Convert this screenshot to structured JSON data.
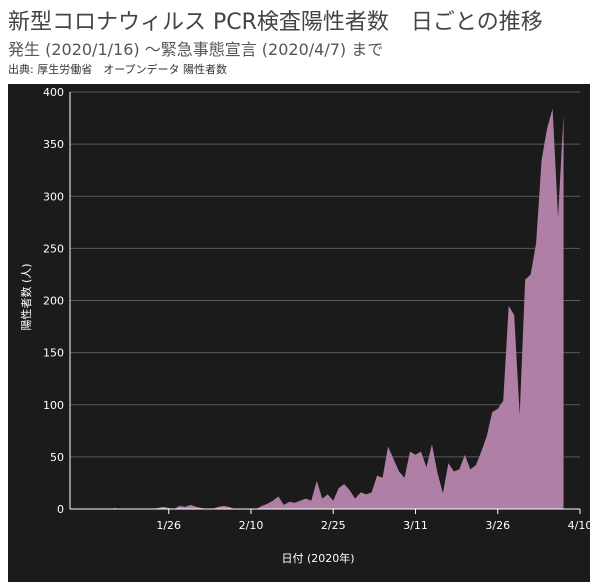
{
  "header": {
    "title": "新型コロナウィルス PCR検査陽性者数　日ごとの推移",
    "subtitle": "発生 (2020/1/16) 〜緊急事態宣言 (2020/4/7) まで",
    "source": "出典: 厚生労働省　オープンデータ 陽性者数"
  },
  "colors": {
    "panel_background": "#1b1b1b",
    "area_fill": "#b07fa6",
    "axis": "#ffffff",
    "grid": "#5a5a5a",
    "text": "#ffffff"
  },
  "chart_data": {
    "type": "area",
    "title": "",
    "xlabel": "日付 (2020年)",
    "ylabel": "陽性者数 (人)",
    "xlim": [
      "2020-01-08",
      "2020-04-10"
    ],
    "ylim": [
      0,
      400
    ],
    "x_ticks": [
      "1/26",
      "2/10",
      "2/25",
      "3/11",
      "3/26",
      "4/10"
    ],
    "x_tick_dates": [
      "2020-01-26",
      "2020-02-10",
      "2020-02-25",
      "2020-03-11",
      "2020-03-26",
      "2020-04-10"
    ],
    "y_ticks": [
      0,
      50,
      100,
      150,
      200,
      250,
      300,
      350,
      400
    ],
    "grid": true,
    "series": [
      {
        "x": [
          "2020-01-16",
          "2020-01-17",
          "2020-01-18",
          "2020-01-19",
          "2020-01-20",
          "2020-01-21",
          "2020-01-22",
          "2020-01-23",
          "2020-01-24",
          "2020-01-25",
          "2020-01-26",
          "2020-01-27",
          "2020-01-28",
          "2020-01-29",
          "2020-01-30",
          "2020-01-31",
          "2020-02-01",
          "2020-02-02",
          "2020-02-03",
          "2020-02-04",
          "2020-02-05",
          "2020-02-06",
          "2020-02-07",
          "2020-02-08",
          "2020-02-09",
          "2020-02-10",
          "2020-02-11",
          "2020-02-12",
          "2020-02-13",
          "2020-02-14",
          "2020-02-15",
          "2020-02-16",
          "2020-02-17",
          "2020-02-18",
          "2020-02-19",
          "2020-02-20",
          "2020-02-21",
          "2020-02-22",
          "2020-02-23",
          "2020-02-24",
          "2020-02-25",
          "2020-02-26",
          "2020-02-27",
          "2020-02-28",
          "2020-02-29",
          "2020-03-01",
          "2020-03-02",
          "2020-03-03",
          "2020-03-04",
          "2020-03-05",
          "2020-03-06",
          "2020-03-07",
          "2020-03-08",
          "2020-03-09",
          "2020-03-10",
          "2020-03-11",
          "2020-03-12",
          "2020-03-13",
          "2020-03-14",
          "2020-03-15",
          "2020-03-16",
          "2020-03-17",
          "2020-03-18",
          "2020-03-19",
          "2020-03-20",
          "2020-03-21",
          "2020-03-22",
          "2020-03-23",
          "2020-03-24",
          "2020-03-25",
          "2020-03-26",
          "2020-03-27",
          "2020-03-28",
          "2020-03-29",
          "2020-03-30",
          "2020-03-31",
          "2020-04-01",
          "2020-04-02",
          "2020-04-03",
          "2020-04-04",
          "2020-04-05",
          "2020-04-06",
          "2020-04-07"
        ],
        "values": [
          1,
          0,
          0,
          0,
          0,
          0,
          0,
          0,
          1,
          2,
          1,
          0,
          3,
          2,
          4,
          2,
          1,
          0,
          0,
          2,
          3,
          2,
          0,
          0,
          0,
          0,
          0,
          3,
          5,
          8,
          12,
          4,
          7,
          6,
          8,
          10,
          8,
          27,
          10,
          14,
          8,
          20,
          24,
          18,
          10,
          16,
          14,
          16,
          32,
          30,
          60,
          48,
          36,
          30,
          55,
          52,
          55,
          40,
          62,
          35,
          15,
          44,
          36,
          38,
          52,
          38,
          42,
          55,
          70,
          93,
          96,
          104,
          195,
          186,
          90,
          220,
          225,
          255,
          335,
          365,
          384,
          280,
          378
        ]
      }
    ]
  }
}
